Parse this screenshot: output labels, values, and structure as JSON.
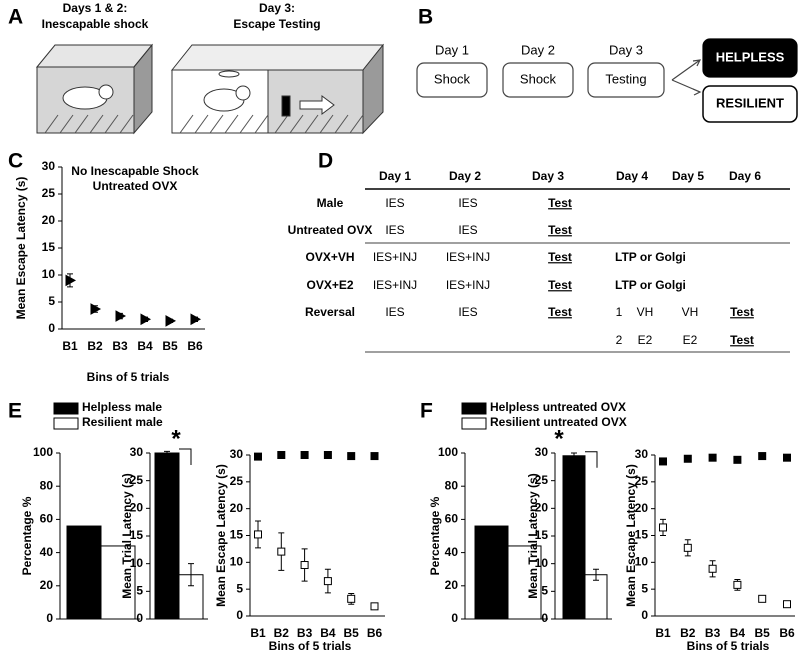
{
  "panel_labels": [
    "A",
    "B",
    "C",
    "D",
    "E",
    "F"
  ],
  "diagram_a": {
    "left_title": [
      "Days 1 & 2:",
      "Inescapable shock"
    ],
    "right_title": [
      "Day 3:",
      "Escape Testing"
    ]
  },
  "diagram_b": {
    "steps": [
      {
        "day": "Day 1",
        "label": "Shock"
      },
      {
        "day": "Day 2",
        "label": "Shock"
      },
      {
        "day": "Day 3",
        "label": "Testing"
      }
    ],
    "outcomes": [
      "HELPLESS",
      "RESILIENT"
    ]
  },
  "table_d": {
    "header": [
      "Day 1",
      "Day 2",
      "Day 3",
      "Day 4",
      "Day 5",
      "Day 6"
    ],
    "rows": [
      {
        "label": "Male",
        "cells": [
          "IES",
          "IES",
          "Test"
        ]
      },
      {
        "label": "Untreated OVX",
        "cells": [
          "IES",
          "IES",
          "Test"
        ]
      },
      {
        "label": "OVX+VH",
        "cells": [
          "IES+INJ",
          "IES+INJ",
          "Test",
          "LTP or Golgi"
        ]
      },
      {
        "label": "OVX+E2",
        "cells": [
          "IES+INJ",
          "IES+INJ",
          "Test",
          "LTP or Golgi"
        ]
      },
      {
        "label": "Reversal",
        "cells": [
          "IES",
          "IES",
          "Test"
        ],
        "arms": [
          [
            "1",
            "VH",
            "VH",
            "Test"
          ],
          [
            "2",
            "E2",
            "E2",
            "Test"
          ]
        ]
      }
    ]
  },
  "chart_data": [
    {
      "type": "scatter",
      "annotation": [
        "No Inescapable Shock",
        "Untreated OVX"
      ],
      "xlabel": "Bins of 5 trials",
      "ylabel": "Mean Escape  Latency (s)",
      "categories": [
        "B1",
        "B2",
        "B3",
        "B4",
        "B5",
        "B6"
      ],
      "series": [
        {
          "color": "#000000",
          "marker": "triangle",
          "values": [
            9,
            3.7,
            2.4,
            1.8,
            1.5,
            1.8
          ],
          "errors": [
            1.2,
            0.6,
            0.5,
            0.4,
            0.3,
            0.4
          ]
        }
      ],
      "ylim": [
        0,
        30
      ],
      "yticks": [
        0,
        5,
        10,
        15,
        20,
        25,
        30
      ]
    },
    {
      "type": "bar",
      "ylabel": "Percentage %",
      "categories": [
        null
      ],
      "series": [
        {
          "name": "Helpless male",
          "color": "#000000",
          "values": [
            56
          ]
        },
        {
          "name": "Resilient male",
          "color": "#ffffff",
          "values": [
            44
          ]
        }
      ],
      "ylim": [
        0,
        100
      ],
      "yticks": [
        0,
        20,
        40,
        60,
        80,
        100
      ]
    },
    {
      "type": "bar",
      "ylabel": "Mean Trial Latency (s)",
      "annotation": [
        "*"
      ],
      "categories": [
        null
      ],
      "series": [
        {
          "color": "#000000",
          "values": [
            30
          ],
          "errors": [
            0.3
          ]
        },
        {
          "color": "#ffffff",
          "values": [
            8
          ],
          "errors": [
            2
          ]
        }
      ],
      "ylim": [
        0,
        30
      ],
      "yticks": [
        0,
        5,
        10,
        15,
        20,
        25,
        30
      ]
    },
    {
      "type": "scatter",
      "xlabel": "Bins of 5 trials",
      "ylabel": "Mean Escape  Latency (s)",
      "categories": [
        "B1",
        "B2",
        "B3",
        "B4",
        "B5",
        "B6"
      ],
      "series": [
        {
          "color": "#000000",
          "marker": "square",
          "values": [
            29.7,
            30,
            30,
            30,
            29.8,
            29.8
          ]
        },
        {
          "color": "#ffffff",
          "marker": "square",
          "values": [
            15.2,
            12,
            9.5,
            6.5,
            3.2,
            1.8
          ],
          "errors": [
            2.5,
            3.5,
            3,
            2.2,
            1,
            0.5
          ]
        }
      ],
      "ylim": [
        0,
        30
      ],
      "yticks": [
        0,
        5,
        10,
        15,
        20,
        25,
        30
      ]
    },
    {
      "type": "bar",
      "ylabel": "Percentage %",
      "categories": [
        null
      ],
      "series": [
        {
          "name": "Helpless untreated OVX",
          "color": "#000000",
          "values": [
            56
          ]
        },
        {
          "name": "Resilient untreated OVX",
          "color": "#ffffff",
          "values": [
            44
          ]
        }
      ],
      "ylim": [
        0,
        100
      ],
      "yticks": [
        0,
        20,
        40,
        60,
        80,
        100
      ]
    },
    {
      "type": "bar",
      "ylabel": "Mean Trial Latency (s)",
      "annotation": [
        "*"
      ],
      "categories": [
        null
      ],
      "series": [
        {
          "color": "#000000",
          "values": [
            29.5
          ],
          "errors": [
            0.5
          ]
        },
        {
          "color": "#ffffff",
          "values": [
            8
          ],
          "errors": [
            1
          ]
        }
      ],
      "ylim": [
        0,
        30
      ],
      "yticks": [
        0,
        5,
        10,
        15,
        20,
        25,
        30
      ]
    },
    {
      "type": "scatter",
      "xlabel": "Bins of 5 trials",
      "ylabel": "Mean Escape  Latency (s)",
      "categories": [
        "B1",
        "B2",
        "B3",
        "B4",
        "B5",
        "B6"
      ],
      "series": [
        {
          "color": "#000000",
          "marker": "square",
          "values": [
            28.8,
            29.3,
            29.5,
            29.1,
            29.8,
            29.5
          ],
          "errors": [
            0.5,
            0.3,
            0.3,
            0.5,
            0.3,
            0.3
          ]
        },
        {
          "color": "#ffffff",
          "marker": "square",
          "values": [
            16.5,
            12.7,
            8.8,
            5.8,
            3.2,
            2.2
          ],
          "errors": [
            1.5,
            1.5,
            1.5,
            1,
            0.3,
            0.3
          ]
        }
      ],
      "ylim": [
        0,
        30
      ],
      "yticks": [
        0,
        5,
        10,
        15,
        20,
        25,
        30
      ]
    }
  ]
}
